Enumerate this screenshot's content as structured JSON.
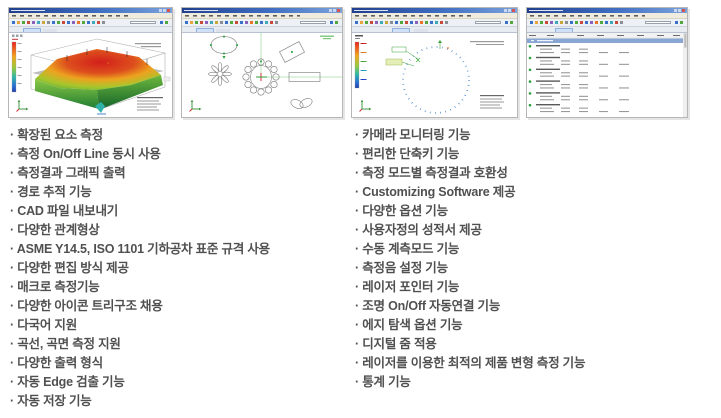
{
  "bullet_char": "·",
  "colors": {
    "titlebar_blue": "#3f6ec2",
    "marker_green": "#2e9e3e",
    "point_blue": "#4a86c8",
    "feature_text": "#505050",
    "deviation_max_red": "#d21f1a",
    "deviation_min_blue": "#1f3fae"
  },
  "features": {
    "left": [
      "확장된 요소 측정",
      "측정 On/Off Line 동시 사용",
      "측정결과 그래픽 출력",
      "경로 추적 기능",
      "CAD 파일 내보내기",
      "다양한 관계형상",
      "ASME Y14.5, ISO 1101 기하공차 표준 규격 사용",
      "다양한 편집 방식 제공",
      "매크로 측정기능",
      "다양한 아이콘 트리구조 채용",
      "다국어 지원",
      "곡선, 곡면 측정 지원",
      "다양한 출력 형식",
      "자동 Edge 검출 기능",
      "자동 저장 기능"
    ],
    "right": [
      "카메라 모니터링 기능",
      "편리한 단축키 기능",
      "측정 모드별 측정결과 호환성",
      "Customizing Software 제공",
      "다양한 옵션 기능",
      "사용자정의 성적서 제공",
      "수동 계측모드 기능",
      "측정음 설정 기능",
      "레이저 포인터 기능",
      "조명 On/Off 자동연결 기능",
      "에지 탐색 옵션 기능",
      "디지털 줌 적용",
      "레이저를 이용한 최적의 제품 변형 측정 기능",
      "통계 기능"
    ]
  }
}
